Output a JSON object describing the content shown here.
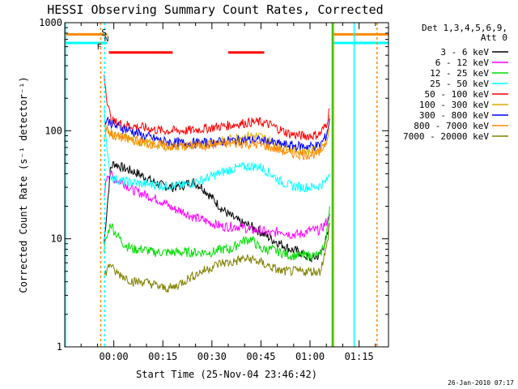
{
  "chart_data": {
    "type": "line",
    "title": "HESSI Observing Summary Count Rates, Corrected",
    "xlabel": "Start Time (25-Nov-04 23:46:42)",
    "ylabel": "Corrected Count Rate (s⁻¹ detector⁻¹)",
    "yscale": "log",
    "ylim": [
      1,
      1000
    ],
    "y_ticks": [
      {
        "v": 1,
        "label": "1"
      },
      {
        "v": 10,
        "label": "10"
      },
      {
        "v": 100,
        "label": "100"
      },
      {
        "v": 1000,
        "label": "1000"
      }
    ],
    "xlim": [
      -15,
      84
    ],
    "x_ticks": [
      {
        "v": 0,
        "label": "00:00"
      },
      {
        "v": 15,
        "label": "00:15"
      },
      {
        "v": 30,
        "label": "00:30"
      },
      {
        "v": 45,
        "label": "00:45"
      },
      {
        "v": 60,
        "label": "01:00"
      },
      {
        "v": 75,
        "label": "01:15"
      }
    ],
    "legend_header": [
      "Det 1,3,4,5,6,9,",
      "Att 0"
    ],
    "legend_position": "right",
    "flag_labels": {
      "s": "S",
      "n": "N",
      "f": "F"
    },
    "flag_bars": [
      [
        -1.5,
        18
      ],
      [
        35,
        46
      ]
    ],
    "series": [
      {
        "name": "3 - 6 keV",
        "color": "#000000",
        "points": [
          [
            -3,
            9
          ],
          [
            -2,
            20
          ],
          [
            -1,
            45
          ],
          [
            0,
            50
          ],
          [
            3,
            45
          ],
          [
            6,
            42
          ],
          [
            9,
            38
          ],
          [
            12,
            34
          ],
          [
            15,
            31
          ],
          [
            18,
            30
          ],
          [
            21,
            31
          ],
          [
            24,
            34
          ],
          [
            27,
            30
          ],
          [
            30,
            24
          ],
          [
            33,
            19
          ],
          [
            36,
            16
          ],
          [
            39,
            14
          ],
          [
            42,
            13
          ],
          [
            45,
            11.5
          ],
          [
            48,
            10
          ],
          [
            51,
            9
          ],
          [
            54,
            8
          ],
          [
            57,
            7.5
          ],
          [
            60,
            6.5
          ],
          [
            63,
            7
          ],
          [
            65.5,
            11
          ],
          [
            66,
            14
          ]
        ]
      },
      {
        "name": "6 - 12 keV",
        "color": "#ff00ff",
        "points": [
          [
            -3,
            25
          ],
          [
            -2,
            40
          ],
          [
            -1,
            40
          ],
          [
            0,
            36
          ],
          [
            3,
            33
          ],
          [
            6,
            28
          ],
          [
            9,
            26
          ],
          [
            12,
            24
          ],
          [
            15,
            22
          ],
          [
            18,
            19
          ],
          [
            21,
            18
          ],
          [
            24,
            16
          ],
          [
            27,
            15
          ],
          [
            30,
            14
          ],
          [
            33,
            13
          ],
          [
            36,
            13
          ],
          [
            39,
            13
          ],
          [
            42,
            12
          ],
          [
            45,
            12
          ],
          [
            48,
            11
          ],
          [
            51,
            12
          ],
          [
            54,
            11
          ],
          [
            57,
            11
          ],
          [
            60,
            12
          ],
          [
            63,
            12
          ],
          [
            64,
            13
          ],
          [
            65.5,
            15
          ],
          [
            66,
            17
          ]
        ]
      },
      {
        "name": "12 - 25 keV",
        "color": "#00dd00",
        "points": [
          [
            -3,
            8
          ],
          [
            -1,
            14
          ],
          [
            0,
            12
          ],
          [
            3,
            9
          ],
          [
            6,
            8
          ],
          [
            9,
            8
          ],
          [
            12,
            7.5
          ],
          [
            15,
            7.5
          ],
          [
            18,
            7.5
          ],
          [
            21,
            7.5
          ],
          [
            24,
            7.5
          ],
          [
            27,
            7.5
          ],
          [
            30,
            7.5
          ],
          [
            33,
            8
          ],
          [
            36,
            8
          ],
          [
            39,
            9.5
          ],
          [
            42,
            10
          ],
          [
            45,
            8
          ],
          [
            48,
            8
          ],
          [
            51,
            7.5
          ],
          [
            54,
            7
          ],
          [
            57,
            7
          ],
          [
            60,
            7
          ],
          [
            63,
            7
          ],
          [
            65,
            10
          ],
          [
            66,
            20
          ]
        ]
      },
      {
        "name": "25 - 50 keV",
        "color": "#00ffff",
        "points": [
          [
            -3,
            180
          ],
          [
            -2,
            60
          ],
          [
            -1,
            38
          ],
          [
            0,
            36
          ],
          [
            3,
            34
          ],
          [
            6,
            33
          ],
          [
            9,
            32
          ],
          [
            12,
            32
          ],
          [
            15,
            31
          ],
          [
            18,
            31
          ],
          [
            21,
            31
          ],
          [
            24,
            33
          ],
          [
            27,
            35
          ],
          [
            30,
            38
          ],
          [
            33,
            41
          ],
          [
            36,
            44
          ],
          [
            39,
            46
          ],
          [
            42,
            47
          ],
          [
            45,
            46
          ],
          [
            48,
            40
          ],
          [
            51,
            34
          ],
          [
            54,
            31
          ],
          [
            57,
            30
          ],
          [
            60,
            30
          ],
          [
            63,
            31
          ],
          [
            65,
            34
          ],
          [
            66,
            40
          ]
        ]
      },
      {
        "name": "50 - 100 keV",
        "color": "#ff0000",
        "points": [
          [
            -3,
            340
          ],
          [
            -2,
            190
          ],
          [
            -1,
            130
          ],
          [
            0,
            120
          ],
          [
            3,
            115
          ],
          [
            6,
            110
          ],
          [
            9,
            107
          ],
          [
            12,
            103
          ],
          [
            15,
            100
          ],
          [
            18,
            100
          ],
          [
            21,
            100
          ],
          [
            24,
            101
          ],
          [
            27,
            104
          ],
          [
            30,
            107
          ],
          [
            33,
            110
          ],
          [
            36,
            113
          ],
          [
            39,
            117
          ],
          [
            42,
            120
          ],
          [
            45,
            120
          ],
          [
            48,
            113
          ],
          [
            51,
            102
          ],
          [
            54,
            93
          ],
          [
            57,
            90
          ],
          [
            60,
            90
          ],
          [
            63,
            93
          ],
          [
            65,
            115
          ],
          [
            66,
            160
          ]
        ]
      },
      {
        "name": "100 - 300 keV",
        "color": "#ddaa00",
        "points": [
          [
            -3,
            90
          ],
          [
            -2,
            100
          ],
          [
            -1,
            95
          ],
          [
            0,
            90
          ],
          [
            3,
            86
          ],
          [
            6,
            82
          ],
          [
            9,
            78
          ],
          [
            12,
            75
          ],
          [
            15,
            72
          ],
          [
            18,
            72
          ],
          [
            21,
            72
          ],
          [
            24,
            73
          ],
          [
            27,
            75
          ],
          [
            30,
            77
          ],
          [
            33,
            80
          ],
          [
            36,
            84
          ],
          [
            39,
            88
          ],
          [
            42,
            90
          ],
          [
            45,
            88
          ],
          [
            48,
            80
          ],
          [
            51,
            72
          ],
          [
            54,
            68
          ],
          [
            57,
            65
          ],
          [
            60,
            65
          ],
          [
            63,
            67
          ],
          [
            65,
            85
          ],
          [
            66,
            140
          ]
        ]
      },
      {
        "name": "300 - 800 keV",
        "color": "#0000ff",
        "points": [
          [
            -3,
            120
          ],
          [
            -2,
            125
          ],
          [
            -1,
            120
          ],
          [
            0,
            112
          ],
          [
            3,
            105
          ],
          [
            6,
            98
          ],
          [
            9,
            90
          ],
          [
            12,
            85
          ],
          [
            15,
            80
          ],
          [
            18,
            78
          ],
          [
            21,
            77
          ],
          [
            24,
            77
          ],
          [
            27,
            77
          ],
          [
            30,
            78
          ],
          [
            33,
            79
          ],
          [
            36,
            81
          ],
          [
            39,
            82
          ],
          [
            42,
            82
          ],
          [
            45,
            81
          ],
          [
            48,
            78
          ],
          [
            51,
            75
          ],
          [
            54,
            73
          ],
          [
            57,
            72
          ],
          [
            60,
            72
          ],
          [
            63,
            73
          ],
          [
            65,
            90
          ],
          [
            66,
            130
          ]
        ]
      },
      {
        "name": "800 - 7000 keV",
        "color": "#ff8800",
        "points": [
          [
            -3,
            110
          ],
          [
            -2,
            105
          ],
          [
            -1,
            95
          ],
          [
            0,
            90
          ],
          [
            3,
            86
          ],
          [
            6,
            82
          ],
          [
            9,
            78
          ],
          [
            12,
            75
          ],
          [
            15,
            73
          ],
          [
            18,
            72
          ],
          [
            21,
            72
          ],
          [
            24,
            72
          ],
          [
            27,
            73
          ],
          [
            30,
            74
          ],
          [
            33,
            75
          ],
          [
            36,
            76
          ],
          [
            39,
            76
          ],
          [
            42,
            75
          ],
          [
            45,
            74
          ],
          [
            48,
            70
          ],
          [
            51,
            66
          ],
          [
            54,
            62
          ],
          [
            57,
            60
          ],
          [
            60,
            60
          ],
          [
            63,
            62
          ],
          [
            65,
            80
          ],
          [
            66,
            120
          ]
        ]
      },
      {
        "name": "7000 - 20000 keV",
        "color": "#808000",
        "points": [
          [
            -3,
            4.5
          ],
          [
            -1,
            6
          ],
          [
            0,
            5
          ],
          [
            3,
            4.5
          ],
          [
            6,
            4
          ],
          [
            9,
            4
          ],
          [
            12,
            3.8
          ],
          [
            15,
            3.5
          ],
          [
            18,
            3.5
          ],
          [
            21,
            4
          ],
          [
            24,
            4.5
          ],
          [
            27,
            5
          ],
          [
            30,
            5.5
          ],
          [
            33,
            6
          ],
          [
            36,
            6
          ],
          [
            39,
            6.5
          ],
          [
            42,
            6.5
          ],
          [
            45,
            6
          ],
          [
            48,
            5.5
          ],
          [
            51,
            5
          ],
          [
            54,
            5
          ],
          [
            57,
            5
          ],
          [
            60,
            5
          ],
          [
            63,
            5
          ],
          [
            65,
            8
          ],
          [
            66,
            14
          ]
        ]
      }
    ]
  },
  "footer_date": "26-Jan-2010 07:17"
}
